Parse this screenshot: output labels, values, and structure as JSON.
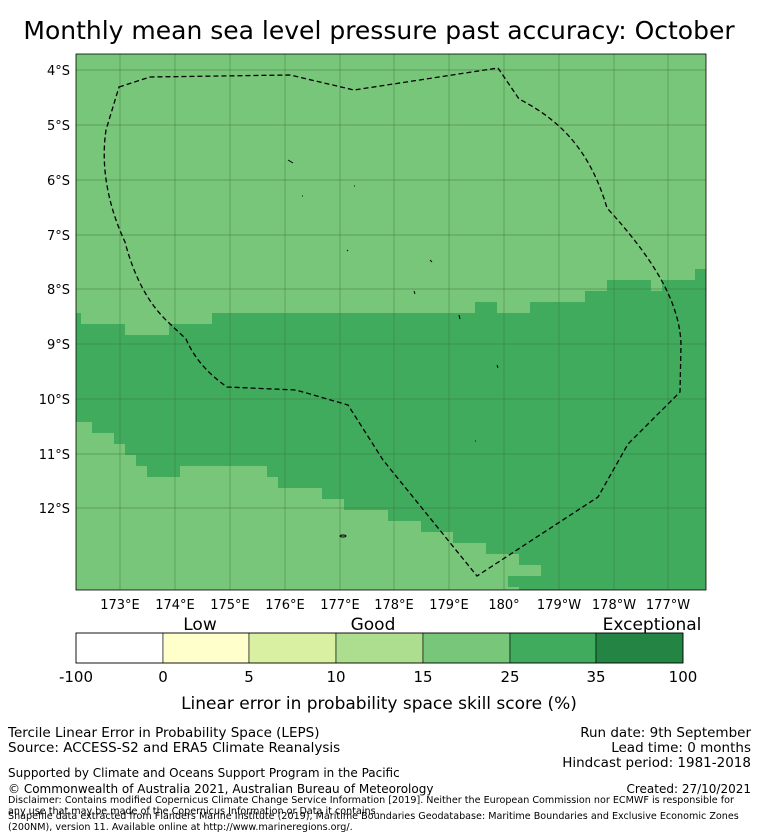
{
  "title": "Monthly mean sea level pressure past accuracy: October",
  "map": {
    "lat_labels": [
      "4°S",
      "5°S",
      "6°S",
      "7°S",
      "8°S",
      "9°S",
      "10°S",
      "11°S",
      "12°S"
    ],
    "lon_labels": [
      "173°E",
      "174°E",
      "175°E",
      "176°E",
      "177°E",
      "178°E",
      "179°E",
      "180°",
      "179°W",
      "178°W",
      "177°W"
    ],
    "gridlines": true,
    "colors": {
      "band_15_25": "#78c679",
      "band_25_35": "#41ab5d",
      "grid": "#3b6e3b",
      "boundary": "#000000"
    },
    "boundary_style": "dashed"
  },
  "colorbar": {
    "category_labels": [
      "Low",
      "Good",
      "Exceptional"
    ],
    "ticks": [
      "-100",
      "0",
      "5",
      "10",
      "15",
      "25",
      "35",
      "100"
    ],
    "colors": [
      "#ffffff",
      "#ffffcc",
      "#d9f0a3",
      "#addd8e",
      "#78c679",
      "#41ab5d",
      "#238443"
    ],
    "label": "Linear error in probability space skill score (%)"
  },
  "footer": {
    "left_line1": "Tercile Linear Error in Probability Space (LEPS)",
    "left_line2": "Source: ACCESS-S2 and ERA5 Climate Reanalysis",
    "run_date": "Run date: 9th September",
    "lead_time": "Lead time: 0 months",
    "hindcast": "Hindcast period: 1981-2018",
    "supported": "Supported by Climate and Oceans Support Program in the Pacific",
    "copyright": "© Commonwealth of Australia 2021, Australian Bureau of Meteorology",
    "created": "Created: 27/10/2021",
    "disclaimer": "Disclaimer: Contains modified Copernicus Climate Change Service Information [2019]. Neither the European Commission nor ECMWF is responsible for any use that may be made of the Copernicus Information or Data it contains.",
    "shapefile": "Shapefile data extracted from Flanders Marine Institute (2019), Maritime Boundaries Geodatabase: Maritime Boundaries and Exclusive Economic Zones (200NM), version 11. Available online at http://www.marineregions.org/."
  }
}
